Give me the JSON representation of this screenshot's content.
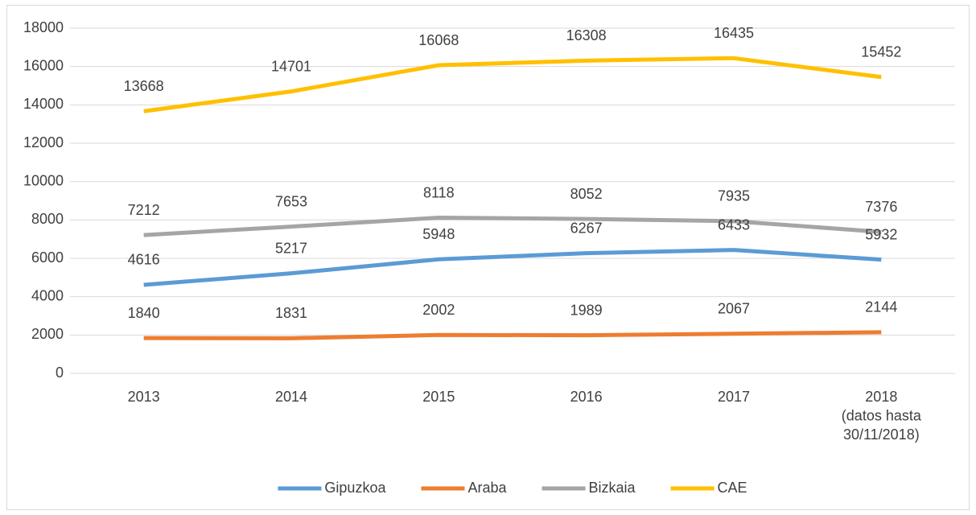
{
  "chart_data": {
    "type": "line",
    "categories": [
      "2013",
      "2014",
      "2015",
      "2016",
      "2017",
      "2018\n(datos hasta\n30/11/2018)"
    ],
    "series": [
      {
        "name": "Gipuzkoa",
        "color": "#5b9bd5",
        "values": [
          4616,
          5217,
          5948,
          6267,
          6433,
          5932
        ]
      },
      {
        "name": "Araba",
        "color": "#ed7d31",
        "values": [
          1840,
          1831,
          2002,
          1989,
          2067,
          2144
        ]
      },
      {
        "name": "Bizkaia",
        "color": "#a5a5a5",
        "values": [
          7212,
          7653,
          8118,
          8052,
          7935,
          7376
        ]
      },
      {
        "name": "CAE",
        "color": "#ffc000",
        "values": [
          13668,
          14701,
          16068,
          16308,
          16435,
          15452
        ]
      }
    ],
    "ylim": [
      0,
      18000
    ],
    "yticks": [
      0,
      2000,
      4000,
      6000,
      8000,
      10000,
      12000,
      14000,
      16000,
      18000
    ],
    "grid": true,
    "legend": "bottom"
  }
}
